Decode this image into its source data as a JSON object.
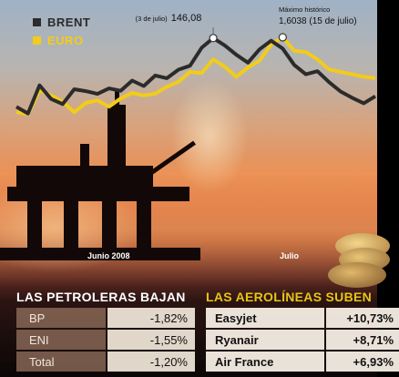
{
  "colors": {
    "brent": "#2b2b2b",
    "euro": "#f2cc1a",
    "title_left": "#ffffff",
    "title_right": "#e8c516"
  },
  "legend": {
    "brent_label": "BRENT",
    "euro_label": "EURO"
  },
  "annotations": {
    "brent_note": "(3 de julio)",
    "brent_value": "146,08",
    "euro_note": "Máximo histórico",
    "euro_value": "1,6038 (15 de julio)"
  },
  "axis": {
    "month1": "Junio 2008",
    "month2": "Julio"
  },
  "chart_data": {
    "type": "line",
    "xlabel": "",
    "ylabel": "",
    "grid": false,
    "legend_position": "top-left",
    "x_labels": [
      "Junio 2008",
      "Julio"
    ],
    "series": [
      {
        "name": "BRENT",
        "values": [
          128.5,
          126.8,
          134.0,
          130.5,
          129.2,
          133.0,
          132.5,
          131.8,
          133.2,
          132.6,
          135.2,
          133.8,
          136.5,
          135.8,
          138.0,
          139.0,
          143.6,
          146.08,
          144.2,
          141.8,
          139.8,
          143.2,
          145.4,
          143.4,
          139.2,
          136.8,
          137.6,
          134.8,
          132.4,
          130.8,
          129.4,
          131.2
        ]
      },
      {
        "name": "EURO",
        "values": [
          1.5435,
          1.542,
          1.561,
          1.557,
          1.552,
          1.5435,
          1.551,
          1.553,
          1.548,
          1.5545,
          1.559,
          1.557,
          1.5585,
          1.564,
          1.568,
          1.576,
          1.575,
          1.586,
          1.58,
          1.572,
          1.5795,
          1.585,
          1.598,
          1.6038,
          1.593,
          1.592,
          1.586,
          1.578,
          1.576,
          1.574,
          1.572,
          1.571
        ]
      }
    ],
    "annotations": [
      {
        "series": "BRENT",
        "label": "(3 de julio)",
        "value": 146.08
      },
      {
        "series": "EURO",
        "label": "Máximo histórico",
        "value": 1.6038,
        "date": "15 de julio"
      }
    ]
  },
  "tables": {
    "left": {
      "title": "LAS PETROLERAS BAJAN",
      "rows": [
        {
          "name": "BP",
          "value": "-1,82%"
        },
        {
          "name": "ENI",
          "value": "-1,55%"
        },
        {
          "name": "Total",
          "value": "-1,20%"
        }
      ]
    },
    "right": {
      "title": "LAS AEROLÍNEAS SUBEN",
      "rows": [
        {
          "name": "Easyjet",
          "value": "+10,73%"
        },
        {
          "name": "Ryanair",
          "value": "+8,71%"
        },
        {
          "name": "Air France",
          "value": "+6,93%"
        }
      ]
    }
  }
}
